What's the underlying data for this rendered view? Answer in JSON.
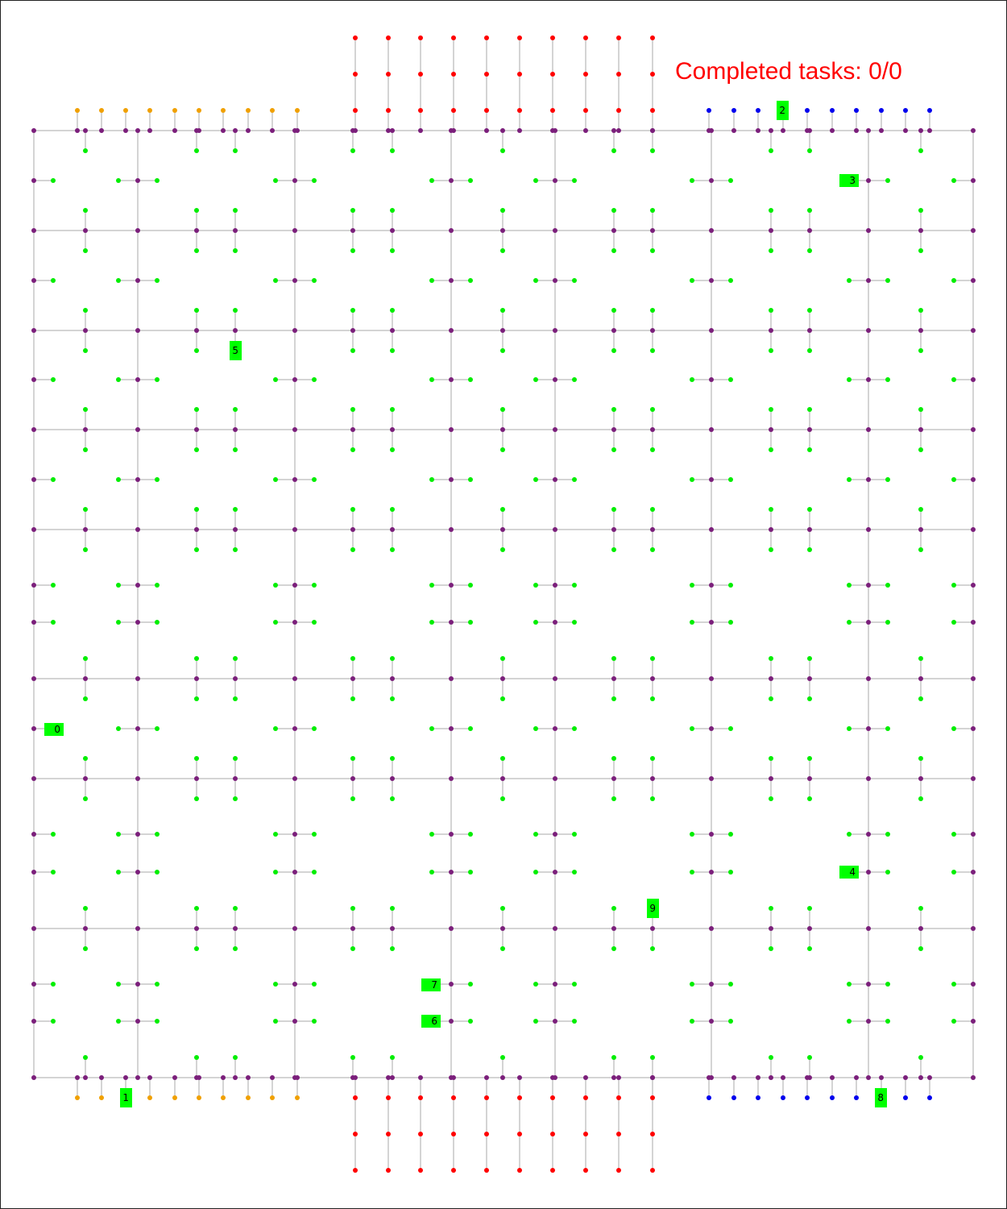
{
  "status": {
    "completed_label": "Completed tasks: 0/0"
  },
  "colors": {
    "track_node": "#7b1f7b",
    "workstation": "#00ee00",
    "pickup": "#ff0000",
    "charger_top_left": "#f0a000",
    "charger_blue": "#0000ee",
    "robot": "#00ff00",
    "edge": "#a9a9a9",
    "status_text": "#ff0000"
  },
  "robots": [
    {
      "id": "0",
      "label": "0"
    },
    {
      "id": "1",
      "label": "1"
    },
    {
      "id": "2",
      "label": "2"
    },
    {
      "id": "3",
      "label": "3"
    },
    {
      "id": "4",
      "label": "4"
    },
    {
      "id": "5",
      "label": "5"
    },
    {
      "id": "6",
      "label": "6"
    },
    {
      "id": "7",
      "label": "7"
    },
    {
      "id": "8",
      "label": "8"
    },
    {
      "id": "9",
      "label": "9"
    }
  ],
  "icons": {
    "robot": "robot-marker-icon",
    "node": "node-dot-icon"
  }
}
